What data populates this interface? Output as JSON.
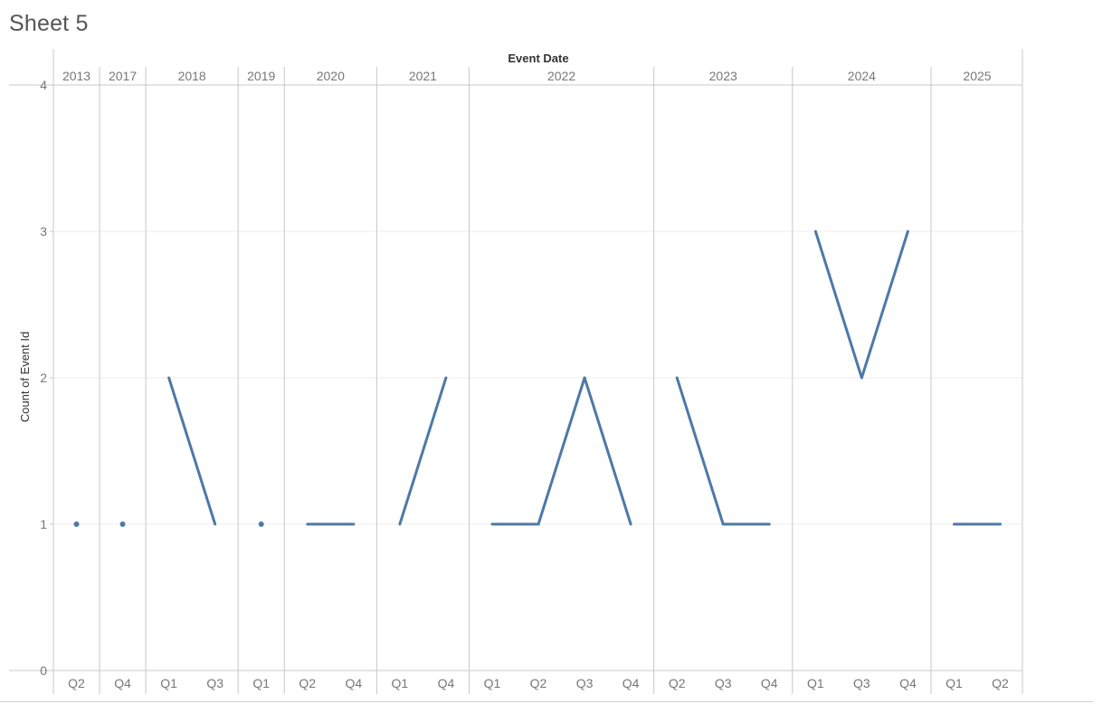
{
  "sheet": {
    "title": "Sheet 5"
  },
  "chart_data": {
    "type": "line",
    "title": "Event Date",
    "xlabel": "Event Date",
    "ylabel": "Count of Event Id",
    "ylim": [
      0,
      4
    ],
    "yticks": [
      0,
      1,
      2,
      3,
      4
    ],
    "grid": true,
    "colors": {
      "line": "#4e79a7",
      "pane_divider": "#c8c8c8",
      "gridline": "#ececec",
      "tick_text": "#777777"
    },
    "years": [
      {
        "year": "2013",
        "quarters": [
          {
            "q": "Q2",
            "value": 1
          }
        ]
      },
      {
        "year": "2017",
        "quarters": [
          {
            "q": "Q4",
            "value": 1
          }
        ]
      },
      {
        "year": "2018",
        "quarters": [
          {
            "q": "Q1",
            "value": 2
          },
          {
            "q": "Q3",
            "value": 1
          }
        ]
      },
      {
        "year": "2019",
        "quarters": [
          {
            "q": "Q1",
            "value": 1
          }
        ]
      },
      {
        "year": "2020",
        "quarters": [
          {
            "q": "Q2",
            "value": 1
          },
          {
            "q": "Q4",
            "value": 1
          }
        ]
      },
      {
        "year": "2021",
        "quarters": [
          {
            "q": "Q1",
            "value": 1
          },
          {
            "q": "Q4",
            "value": 2
          }
        ]
      },
      {
        "year": "2022",
        "quarters": [
          {
            "q": "Q1",
            "value": 1
          },
          {
            "q": "Q2",
            "value": 1
          },
          {
            "q": "Q3",
            "value": 2
          },
          {
            "q": "Q4",
            "value": 1
          }
        ]
      },
      {
        "year": "2023",
        "quarters": [
          {
            "q": "Q2",
            "value": 2
          },
          {
            "q": "Q3",
            "value": 1
          },
          {
            "q": "Q4",
            "value": 1
          }
        ]
      },
      {
        "year": "2024",
        "quarters": [
          {
            "q": "Q1",
            "value": 3
          },
          {
            "q": "Q3",
            "value": 2
          },
          {
            "q": "Q4",
            "value": 3
          }
        ]
      },
      {
        "year": "2025",
        "quarters": [
          {
            "q": "Q1",
            "value": 1
          },
          {
            "q": "Q2",
            "value": 1
          }
        ]
      }
    ]
  }
}
